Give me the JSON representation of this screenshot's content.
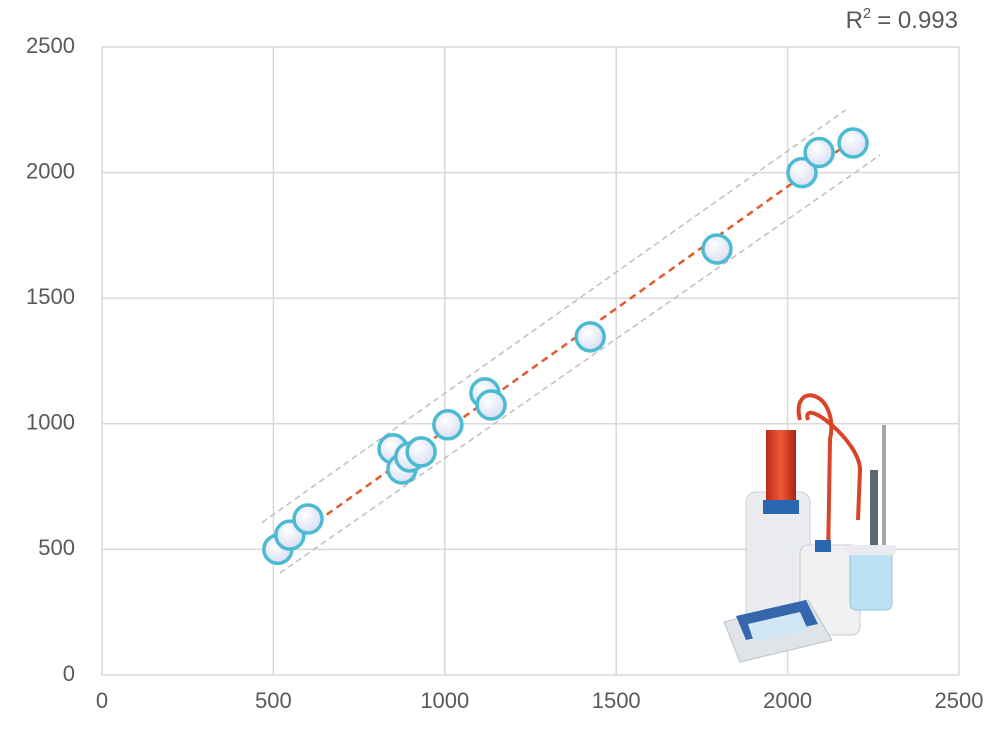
{
  "chart_data": {
    "type": "scatter",
    "x": [
      513,
      548,
      601,
      849,
      875,
      898,
      931,
      1009,
      1117,
      1135,
      1424,
      1794,
      2042,
      2092,
      2191
    ],
    "values": [
      500,
      557,
      621,
      900,
      820,
      868,
      888,
      996,
      1123,
      1075,
      1346,
      1696,
      2000,
      2080,
      2118
    ],
    "marker_fill": "#d6dcf2",
    "marker_stroke": "#4bbad3",
    "xlim": [
      0,
      2500
    ],
    "ylim": [
      0,
      2500
    ],
    "xticks": [
      0,
      500,
      1000,
      1500,
      2000,
      2500
    ],
    "yticks": [
      0,
      500,
      1000,
      1500,
      2000,
      2500
    ],
    "grid": true,
    "trendline": {
      "x": [
        513,
        2191
      ],
      "y": [
        500,
        2130
      ],
      "color": "#e05a2b"
    },
    "bands": [
      {
        "x": [
          467,
          2170
        ],
        "y": [
          607,
          2250
        ],
        "color": "#bfbfbf"
      },
      {
        "x": [
          519,
          2270
        ],
        "y": [
          406,
          2070
        ],
        "color": "#bfbfbf"
      }
    ],
    "annotation": {
      "base": "R",
      "sup": "2",
      "text": "= 0.993",
      "color": "#e05a2b"
    }
  }
}
